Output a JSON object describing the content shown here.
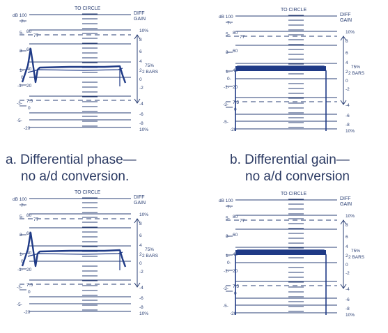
{
  "colors": {
    "ink": "#2a3f74",
    "trace": "#1f3a86",
    "caption": "#2b3a63",
    "background": "#ffffff"
  },
  "scale_text": {
    "to_circle": "TO CIRCLE",
    "diff_gain_1": "DIFF",
    "diff_gain_2": "GAIN",
    "pct_top": "10%",
    "pct_bottom": "10%",
    "bars_1": "75%",
    "bars_2": "2 BARS",
    "bars_2_alt": "BARS",
    "left_labels": [
      "dB 100",
      "7-",
      "5-",
      "80",
      "77",
      "3-",
      "60",
      "1-",
      "40",
      "0-",
      "-1-",
      "20",
      "-3-",
      "7.5",
      "0",
      "-5-",
      "-20"
    ],
    "right_labels": [
      "10%",
      "8",
      "6",
      "4",
      "2",
      "0",
      "-2",
      "-4",
      "-6",
      "-8",
      "10%"
    ]
  },
  "captions": {
    "a_line1": "a.  Differential phase—",
    "a_line2": "no a/d conversion.",
    "b_line1": "b.  Differential gain—",
    "b_line2": "no a/d conversion"
  },
  "panels": [
    {
      "id": "a",
      "trace": "phase"
    },
    {
      "id": "b",
      "trace": "gain"
    },
    {
      "id": "c",
      "trace": "phase"
    },
    {
      "id": "d",
      "trace": "gain"
    }
  ]
}
